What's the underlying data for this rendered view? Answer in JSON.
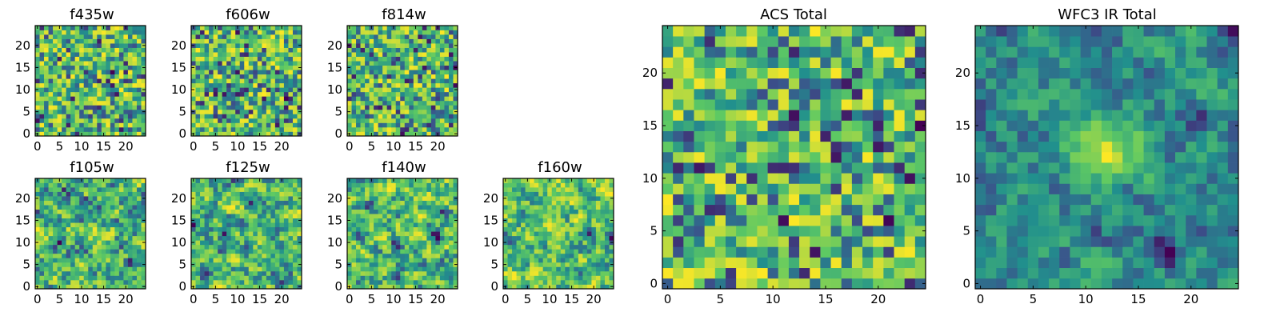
{
  "figure": {
    "panels": [
      {
        "id": "f435w",
        "title": "f435w",
        "xticks": [
          0,
          5,
          10,
          15,
          20
        ],
        "yticks": [
          0,
          5,
          10,
          15,
          20
        ]
      },
      {
        "id": "f606w",
        "title": "f606w",
        "xticks": [
          0,
          5,
          10,
          15,
          20
        ],
        "yticks": [
          0,
          5,
          10,
          15,
          20
        ]
      },
      {
        "id": "f814w",
        "title": "f814w",
        "xticks": [
          0,
          5,
          10,
          15,
          20
        ],
        "yticks": [
          0,
          5,
          10,
          15,
          20
        ]
      },
      {
        "id": "f105w",
        "title": "f105w",
        "xticks": [
          0,
          5,
          10,
          15,
          20
        ],
        "yticks": [
          0,
          5,
          10,
          15,
          20
        ]
      },
      {
        "id": "f125w",
        "title": "f125w",
        "xticks": [
          0,
          5,
          10,
          15,
          20
        ],
        "yticks": [
          0,
          5,
          10,
          15,
          20
        ]
      },
      {
        "id": "f140w",
        "title": "f140w",
        "xticks": [
          0,
          5,
          10,
          15,
          20
        ],
        "yticks": [
          0,
          5,
          10,
          15,
          20
        ]
      },
      {
        "id": "f160w",
        "title": "f160w",
        "xticks": [
          0,
          5,
          10,
          15,
          20
        ],
        "yticks": [
          0,
          5,
          10,
          15,
          20
        ]
      },
      {
        "id": "acs-total",
        "title": "ACS Total",
        "xticks": [
          0,
          5,
          10,
          15,
          20
        ],
        "yticks": [
          0,
          5,
          10,
          15,
          20
        ]
      },
      {
        "id": "wfc3-ir-total",
        "title": "WFC3 IR Total",
        "xticks": [
          0,
          5,
          10,
          15,
          20
        ],
        "yticks": [
          0,
          5,
          10,
          15,
          20
        ]
      }
    ]
  },
  "colors": {
    "colormap": "viridis",
    "viridis_stops": [
      "#440154",
      "#3b528b",
      "#21908d",
      "#5dc963",
      "#fde725"
    ]
  },
  "chart_data": [
    {
      "type": "heatmap",
      "title": "f435w",
      "grid_size": [
        25,
        25
      ],
      "xlim": [
        0,
        24
      ],
      "ylim": [
        0,
        24
      ],
      "colormap": "viridis",
      "pattern": "noise"
    },
    {
      "type": "heatmap",
      "title": "f606w",
      "grid_size": [
        25,
        25
      ],
      "xlim": [
        0,
        24
      ],
      "ylim": [
        0,
        24
      ],
      "colormap": "viridis",
      "pattern": "noise"
    },
    {
      "type": "heatmap",
      "title": "f814w",
      "grid_size": [
        25,
        25
      ],
      "xlim": [
        0,
        24
      ],
      "ylim": [
        0,
        24
      ],
      "colormap": "viridis",
      "pattern": "noise"
    },
    {
      "type": "heatmap",
      "title": "f105w",
      "grid_size": [
        25,
        25
      ],
      "xlim": [
        0,
        24
      ],
      "ylim": [
        0,
        24
      ],
      "colormap": "viridis",
      "pattern": "smooth-noise"
    },
    {
      "type": "heatmap",
      "title": "f125w",
      "grid_size": [
        25,
        25
      ],
      "xlim": [
        0,
        24
      ],
      "ylim": [
        0,
        24
      ],
      "colormap": "viridis",
      "pattern": "smooth-noise"
    },
    {
      "type": "heatmap",
      "title": "f140w",
      "grid_size": [
        25,
        25
      ],
      "xlim": [
        0,
        24
      ],
      "ylim": [
        0,
        24
      ],
      "colormap": "viridis",
      "pattern": "smooth-noise"
    },
    {
      "type": "heatmap",
      "title": "f160w",
      "grid_size": [
        25,
        25
      ],
      "xlim": [
        0,
        24
      ],
      "ylim": [
        0,
        24
      ],
      "colormap": "viridis",
      "pattern": "smooth-noise"
    },
    {
      "type": "heatmap",
      "title": "ACS Total",
      "grid_size": [
        25,
        25
      ],
      "xlim": [
        0,
        24
      ],
      "ylim": [
        0,
        24
      ],
      "colormap": "viridis",
      "pattern": "noise"
    },
    {
      "type": "heatmap",
      "title": "WFC3 IR Total",
      "grid_size": [
        25,
        25
      ],
      "xlim": [
        0,
        24
      ],
      "ylim": [
        0,
        24
      ],
      "colormap": "viridis",
      "pattern": "central-source",
      "source_center": [
        12,
        13
      ]
    }
  ]
}
